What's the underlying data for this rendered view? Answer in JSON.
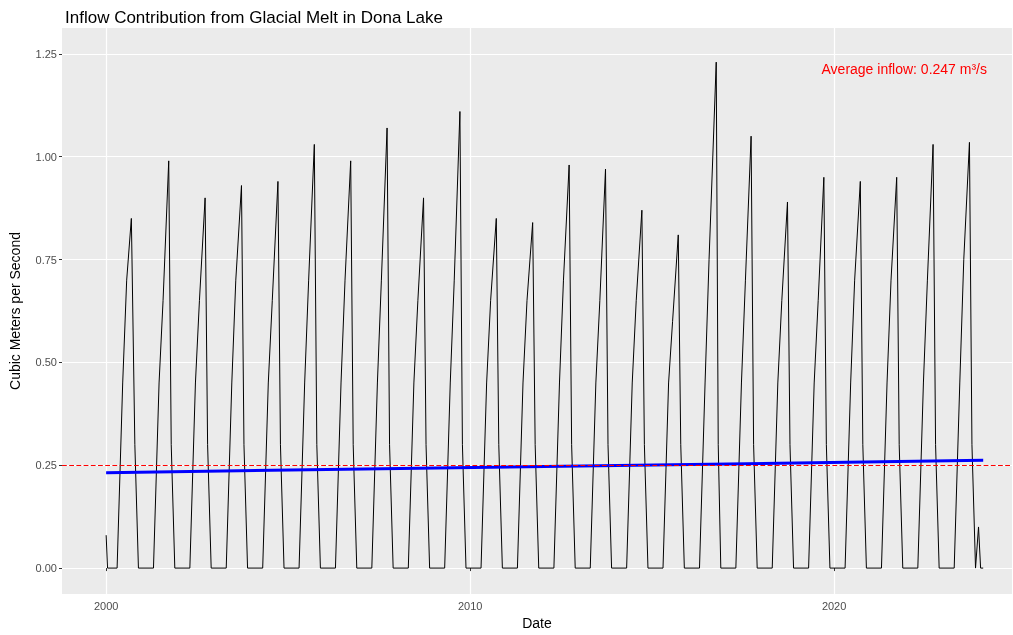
{
  "chart_data": {
    "type": "line",
    "title": "Inflow Contribution from Glacial Melt in Dona Lake",
    "xlabel": "Date",
    "ylabel": "Cubic Meters per Second",
    "annotations": [
      "Average inflow: 0.247 m³/s"
    ],
    "xlim": [
      "1998-10-15",
      "2024-11-20"
    ],
    "xticks": [
      "2000",
      "2010",
      "2020"
    ],
    "ylim": [
      -0.063,
      1.313
    ],
    "yticks": [
      {
        "value": 0,
        "label": "0.00"
      },
      {
        "value": 0.25,
        "label": "0.25"
      },
      {
        "value": 0.5,
        "label": "0.50"
      },
      {
        "value": 0.75,
        "label": "0.75"
      },
      {
        "value": 1,
        "label": "1.00"
      },
      {
        "value": 1.25,
        "label": "1.25"
      }
    ],
    "grid": true,
    "marker": "none",
    "ref_lines": [
      {
        "axis": "y",
        "value": 0.247,
        "color": "#ff0000",
        "line_style": "dashed"
      }
    ],
    "series": [
      {
        "color": "#000000",
        "x": [
          "2000-01-01",
          "2000-01-15",
          "2000-04-20",
          "2000-06-15",
          "2000-07-25",
          "2000-09-10",
          "2000-10-15",
          "2000-11-20",
          "2001-04-20",
          "2001-06-15",
          "2001-07-25",
          "2001-09-20",
          "2001-10-15",
          "2001-11-20",
          "2002-04-20",
          "2002-06-15",
          "2002-07-25",
          "2002-09-20",
          "2002-10-15",
          "2002-11-20",
          "2003-04-20",
          "2003-06-15",
          "2003-07-25",
          "2003-09-20",
          "2003-10-15",
          "2003-11-20",
          "2004-04-20",
          "2004-06-15",
          "2004-07-25",
          "2004-09-20",
          "2004-10-15",
          "2004-11-20",
          "2005-04-20",
          "2005-06-15",
          "2005-07-25",
          "2005-09-20",
          "2005-10-15",
          "2005-11-20",
          "2006-04-20",
          "2006-06-15",
          "2006-07-25",
          "2006-09-20",
          "2006-10-15",
          "2006-11-20",
          "2007-04-20",
          "2007-06-15",
          "2007-07-25",
          "2007-09-20",
          "2007-10-15",
          "2007-11-20",
          "2008-04-20",
          "2008-06-15",
          "2008-07-25",
          "2008-09-20",
          "2008-10-15",
          "2008-11-20",
          "2009-04-20",
          "2009-06-15",
          "2009-07-25",
          "2009-09-20",
          "2009-10-15",
          "2009-11-20",
          "2010-04-20",
          "2010-06-15",
          "2010-07-25",
          "2010-09-20",
          "2010-10-15",
          "2010-11-20",
          "2011-04-20",
          "2011-06-15",
          "2011-07-25",
          "2011-09-20",
          "2011-10-15",
          "2011-11-20",
          "2012-04-20",
          "2012-06-15",
          "2012-07-25",
          "2012-09-20",
          "2012-10-15",
          "2012-11-20",
          "2013-04-20",
          "2013-06-15",
          "2013-07-25",
          "2013-09-20",
          "2013-10-15",
          "2013-11-20",
          "2014-04-20",
          "2014-06-15",
          "2014-07-25",
          "2014-09-20",
          "2014-10-15",
          "2014-11-20",
          "2015-04-20",
          "2015-06-15",
          "2015-07-25",
          "2015-09-20",
          "2015-10-15",
          "2015-11-20",
          "2016-04-20",
          "2016-06-15",
          "2016-07-25",
          "2016-10-05",
          "2016-10-25",
          "2016-11-20",
          "2017-04-20",
          "2017-06-15",
          "2017-07-25",
          "2017-09-20",
          "2017-10-15",
          "2017-11-20",
          "2018-04-20",
          "2018-06-15",
          "2018-07-25",
          "2018-09-20",
          "2018-10-15",
          "2018-11-20",
          "2019-04-20",
          "2019-06-15",
          "2019-07-25",
          "2019-09-20",
          "2019-10-15",
          "2019-11-20",
          "2020-04-20",
          "2020-06-15",
          "2020-07-25",
          "2020-09-20",
          "2020-10-15",
          "2020-11-20",
          "2021-04-20",
          "2021-06-15",
          "2021-07-25",
          "2021-09-20",
          "2021-10-15",
          "2021-11-20",
          "2022-04-20",
          "2022-06-15",
          "2022-07-25",
          "2022-09-20",
          "2022-10-15",
          "2022-11-20",
          "2023-04-20",
          "2023-06-15",
          "2023-07-25",
          "2023-09-20",
          "2023-10-15",
          "2023-11-20",
          "2023-12-20",
          "2024-01-10",
          "2024-02-05"
        ],
        "values": [
          0.08,
          0,
          0,
          0.45,
          0.7,
          0.85,
          0.3,
          0,
          0,
          0.45,
          0.65,
          0.99,
          0.3,
          0,
          0,
          0.45,
          0.65,
          0.9,
          0.3,
          0,
          0,
          0.45,
          0.7,
          0.93,
          0.3,
          0,
          0,
          0.45,
          0.65,
          0.94,
          0.3,
          0,
          0,
          0.45,
          0.7,
          1.03,
          0.3,
          0,
          0,
          0.45,
          0.7,
          0.99,
          0.3,
          0,
          0,
          0.45,
          0.7,
          1.07,
          0.3,
          0,
          0,
          0.45,
          0.65,
          0.9,
          0.3,
          0,
          0,
          0.45,
          0.7,
          1.11,
          0.3,
          0,
          0,
          0.45,
          0.65,
          0.85,
          0.3,
          0,
          0,
          0.45,
          0.65,
          0.84,
          0.3,
          0,
          0,
          0.45,
          0.7,
          0.98,
          0.3,
          0,
          0,
          0.45,
          0.65,
          0.97,
          0.3,
          0,
          0,
          0.45,
          0.65,
          0.87,
          0.3,
          0,
          0,
          0.45,
          0.6,
          0.81,
          0.3,
          0,
          0,
          0.45,
          0.75,
          1.23,
          0.3,
          0,
          0,
          0.45,
          0.7,
          1.05,
          0.3,
          0,
          0,
          0.45,
          0.65,
          0.89,
          0.3,
          0,
          0,
          0.45,
          0.65,
          0.95,
          0.3,
          0,
          0,
          0.45,
          0.7,
          0.94,
          0.3,
          0,
          0,
          0.45,
          0.7,
          0.95,
          0.3,
          0,
          0,
          0.45,
          0.7,
          1.03,
          0.3,
          0,
          0,
          0.45,
          0.75,
          1.035,
          0.3,
          0,
          0.1,
          0,
          0
        ]
      },
      {
        "type": "line",
        "color": "#0000ff",
        "x": [
          "2000-01-01",
          "2024-02-05"
        ],
        "values": [
          0.232,
          0.262
        ]
      }
    ]
  }
}
